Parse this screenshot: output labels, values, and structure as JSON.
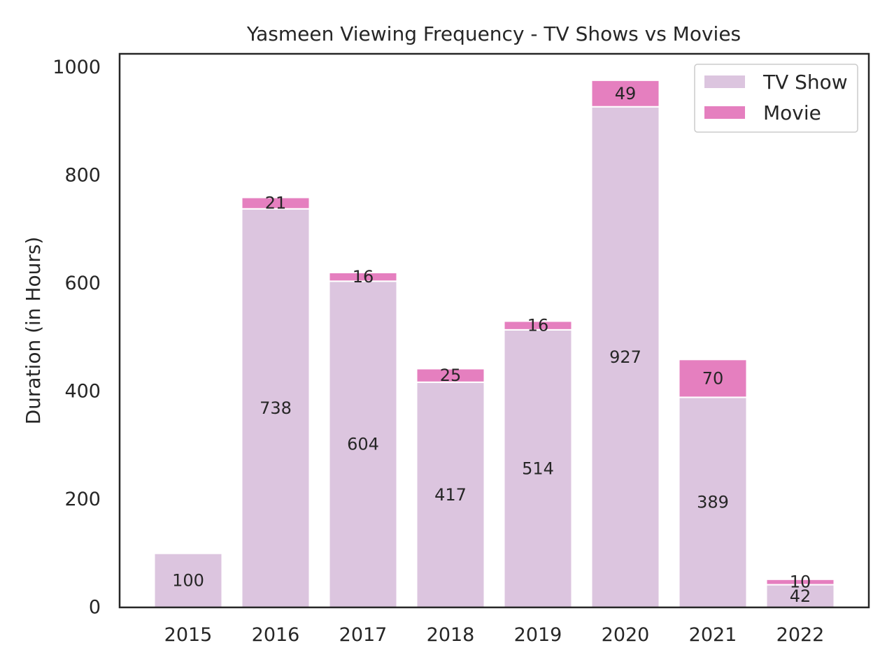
{
  "chart_data": {
    "type": "bar",
    "stacked": true,
    "title": "Yasmeen Viewing Frequency - TV Shows vs Movies",
    "xlabel": "",
    "ylabel": "Duration (in Hours)",
    "ylim": [
      0,
      1025
    ],
    "yticks": [
      0,
      200,
      400,
      600,
      800,
      1000
    ],
    "categories": [
      "2015",
      "2016",
      "2017",
      "2018",
      "2019",
      "2020",
      "2021",
      "2022"
    ],
    "series": [
      {
        "name": "TV Show",
        "color": "#dcc5df",
        "values": [
          100,
          738,
          604,
          417,
          514,
          927,
          389,
          42
        ],
        "labels": [
          "100",
          "738",
          "604",
          "417",
          "514",
          "927",
          "389",
          "42"
        ]
      },
      {
        "name": "Movie",
        "color": "#e57fbf",
        "values": [
          0,
          21,
          16,
          25,
          16,
          49,
          70,
          10
        ],
        "labels": [
          "",
          "21",
          "16",
          "25",
          "16",
          "49",
          "70",
          "10"
        ]
      }
    ],
    "legend": {
      "position": "top-right",
      "entries": [
        "TV Show",
        "Movie"
      ]
    },
    "grid": false
  }
}
